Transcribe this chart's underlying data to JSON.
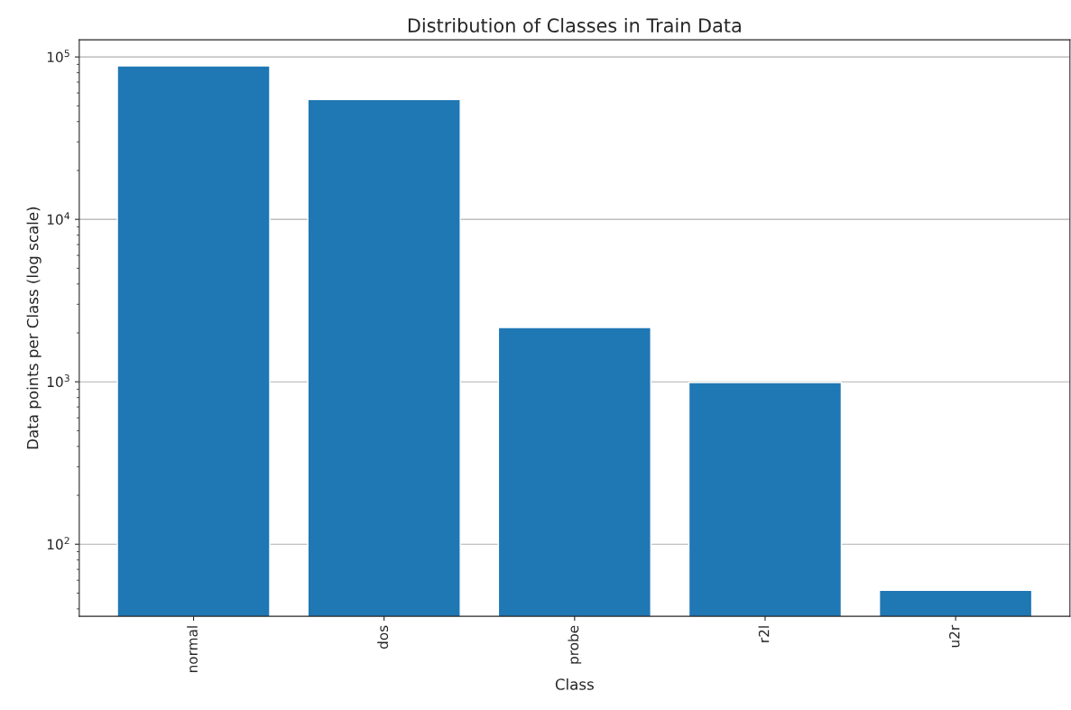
{
  "chart_data": {
    "type": "bar",
    "title": "Distribution of Classes in Train Data",
    "xlabel": "Class",
    "ylabel": "Data points per Class (log scale)",
    "categories": [
      "normal",
      "dos",
      "probe",
      "r2l",
      "u2r"
    ],
    "values": [
      88000,
      54700,
      2160,
      990,
      52
    ],
    "color": "#1f77b4",
    "log": "y",
    "ylim": [
      36,
      127600
    ],
    "yticks": [
      {
        "value": 100,
        "label": "10$^{2}$"
      },
      {
        "value": 1000,
        "label": "10$^{3}$"
      },
      {
        "value": 10000,
        "label": "10$^{4}$"
      },
      {
        "value": 100000,
        "label": "10$^{5}$"
      }
    ],
    "grid": "y"
  }
}
